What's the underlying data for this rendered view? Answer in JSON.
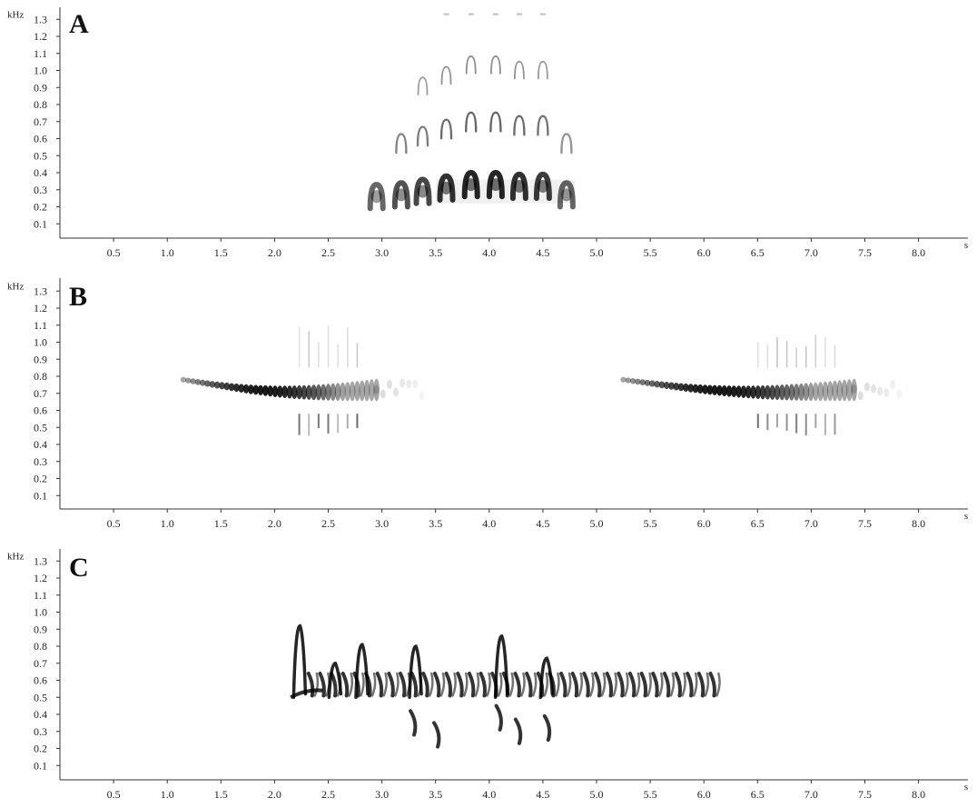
{
  "chart_data": [
    {
      "type": "spectrogram",
      "panel_label": "A",
      "ylabel": "kHz",
      "xlabel": "s",
      "xlim": [
        0,
        8.5
      ],
      "ylim": [
        0,
        1.35
      ],
      "x_ticks": [
        0.5,
        1.0,
        1.5,
        2.0,
        2.5,
        3.0,
        3.5,
        4.0,
        4.5,
        5.0,
        5.5,
        6.0,
        6.5,
        7.0,
        7.5,
        8.0
      ],
      "x_tick_labels": [
        "0.5",
        "1.0",
        "1.5",
        "2.0",
        "2.5",
        "3.0",
        "3.5",
        "4.0",
        "4.5",
        "5.0",
        "5.5",
        "6.0",
        "6.5",
        "7.0",
        "7.5",
        "8.0"
      ],
      "y_ticks": [
        0.1,
        0.2,
        0.3,
        0.4,
        0.5,
        0.6,
        0.7,
        0.8,
        0.9,
        1.0,
        1.1,
        1.2,
        1.3
      ],
      "y_tick_labels": [
        "0.1",
        "0.2",
        "0.3",
        "0.4",
        "0.5",
        "0.6",
        "0.7",
        "0.8",
        "0.9",
        "1.0",
        "1.1",
        "1.2",
        "1.3"
      ],
      "notes": [
        {
          "t": 2.95,
          "f0": 0.26,
          "i": 0.7
        },
        {
          "t": 3.18,
          "f0": 0.27,
          "i": 0.8
        },
        {
          "t": 3.38,
          "f0": 0.29,
          "i": 0.85
        },
        {
          "t": 3.6,
          "f0": 0.31,
          "i": 0.95
        },
        {
          "t": 3.83,
          "f0": 0.33,
          "i": 1.0
        },
        {
          "t": 4.06,
          "f0": 0.33,
          "i": 1.0
        },
        {
          "t": 4.28,
          "f0": 0.32,
          "i": 0.95
        },
        {
          "t": 4.5,
          "f0": 0.32,
          "i": 0.9
        },
        {
          "t": 4.72,
          "f0": 0.27,
          "i": 0.7
        }
      ]
    },
    {
      "type": "spectrogram",
      "panel_label": "B",
      "ylabel": "kHz",
      "xlabel": "s",
      "xlim": [
        0,
        8.5
      ],
      "ylim": [
        0,
        1.35
      ],
      "x_ticks": [
        0.5,
        1.0,
        1.5,
        2.0,
        2.5,
        3.0,
        3.5,
        4.0,
        4.5,
        5.0,
        5.5,
        6.0,
        6.5,
        7.0,
        7.5,
        8.0
      ],
      "x_tick_labels": [
        "0.5",
        "1.0",
        "1.5",
        "2.0",
        "2.5",
        "3.0",
        "3.5",
        "4.0",
        "4.5",
        "5.0",
        "5.5",
        "6.0",
        "6.5",
        "7.0",
        "7.5",
        "8.0"
      ],
      "y_ticks": [
        0.1,
        0.2,
        0.3,
        0.4,
        0.5,
        0.6,
        0.7,
        0.8,
        0.9,
        1.0,
        1.1,
        1.2,
        1.3
      ],
      "y_tick_labels": [
        "0.1",
        "0.2",
        "0.3",
        "0.4",
        "0.5",
        "0.6",
        "0.7",
        "0.8",
        "0.9",
        "1.0",
        "1.1",
        "1.2",
        "1.3"
      ],
      "calls": [
        {
          "start": 1.15,
          "end": 2.95,
          "f_start": 0.78,
          "f_end": 0.72
        },
        {
          "start": 5.25,
          "end": 7.4,
          "f_start": 0.78,
          "f_end": 0.72
        }
      ]
    },
    {
      "type": "spectrogram",
      "panel_label": "C",
      "ylabel": "kHz",
      "xlabel": "s",
      "xlim": [
        0,
        8.5
      ],
      "ylim": [
        0,
        1.35
      ],
      "x_ticks": [
        0.5,
        1.0,
        1.5,
        2.0,
        2.5,
        3.0,
        3.5,
        4.0,
        4.5,
        5.0,
        5.5,
        6.0,
        6.5,
        7.0,
        7.5,
        8.0
      ],
      "x_tick_labels": [
        "0.5",
        "1.0",
        "1.5",
        "2.0",
        "2.5",
        "3.0",
        "3.5",
        "4.0",
        "4.5",
        "5.0",
        "5.5",
        "6.0",
        "6.5",
        "7.0",
        "7.5",
        "8.0"
      ],
      "y_ticks": [
        0.1,
        0.2,
        0.3,
        0.4,
        0.5,
        0.6,
        0.7,
        0.8,
        0.9,
        1.0,
        1.1,
        1.2,
        1.3
      ],
      "y_tick_labels": [
        "0.1",
        "0.2",
        "0.3",
        "0.4",
        "0.5",
        "0.6",
        "0.7",
        "0.8",
        "0.9",
        "1.0",
        "1.1",
        "1.2",
        "1.3"
      ],
      "call": {
        "start": 2.15,
        "end": 6.2,
        "f_center": 0.57
      },
      "peaks": [
        {
          "t": 2.22,
          "f": 0.92
        },
        {
          "t": 2.55,
          "f": 0.7
        },
        {
          "t": 2.8,
          "f": 0.81
        },
        {
          "t": 3.3,
          "f": 0.8
        },
        {
          "t": 4.1,
          "f": 0.86
        },
        {
          "t": 4.52,
          "f": 0.73
        }
      ],
      "low_elements": [
        {
          "t": 3.3,
          "f": 0.35
        },
        {
          "t": 3.52,
          "f": 0.28
        },
        {
          "t": 4.1,
          "f": 0.38
        },
        {
          "t": 4.28,
          "f": 0.3
        },
        {
          "t": 4.55,
          "f": 0.32
        }
      ]
    }
  ]
}
